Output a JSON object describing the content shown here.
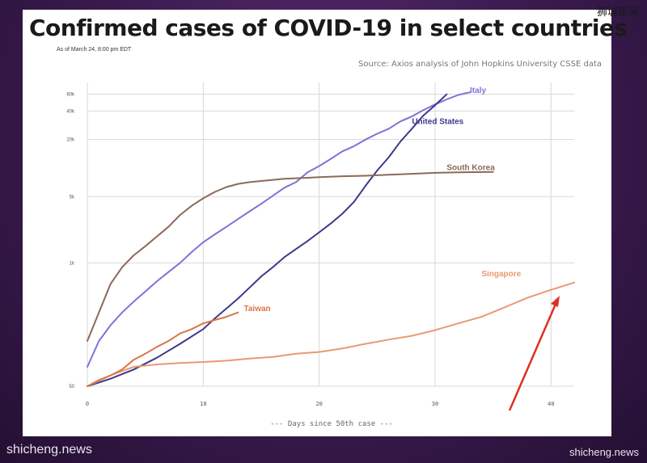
{
  "slide": {
    "title": "Confirmed cases of COVID-19 in select countries",
    "as_of": "As of March 24, 8:00 pm EDT",
    "source": "Source: Axios analysis of John Hopkins University CSSE data"
  },
  "watermarks": {
    "left": "shicheng.news",
    "right": "shicheng.news",
    "top": "狮城新闻"
  },
  "colors": {
    "Italy": "#7b74d8",
    "United States": "#3b3a8c",
    "South Korea": "#8a6a58",
    "Singapore": "#e89a72",
    "Taiwan": "#d9764a",
    "arrow": "#e03020",
    "grid": "#d8d8d8"
  },
  "chart_data": {
    "type": "line",
    "title": "Confirmed cases of COVID-19 in select countries",
    "xlabel": "Days since 50th case",
    "ylabel": "",
    "x_scale": "linear",
    "y_scale": "log",
    "xlim": [
      0,
      42
    ],
    "ylim": [
      50,
      80000
    ],
    "x_ticks": [
      0,
      10,
      20,
      30,
      40
    ],
    "x_tick_labels": [
      "0",
      "10",
      "20",
      "30",
      "40"
    ],
    "y_ticks": [
      50,
      1000,
      5000,
      20000,
      40000,
      60000
    ],
    "y_tick_labels": [
      "50",
      "1k",
      "5k",
      "20k",
      "40k",
      "60k"
    ],
    "grid": true,
    "legend": "inline labels at line ends",
    "series": [
      {
        "name": "Italy",
        "label_x": 33,
        "label_y": 62000,
        "x": [
          0,
          1,
          2,
          3,
          4,
          5,
          6,
          7,
          8,
          9,
          10,
          11,
          12,
          13,
          14,
          15,
          16,
          17,
          18,
          19,
          20,
          21,
          22,
          23,
          24,
          25,
          26,
          27,
          28,
          29,
          30,
          31,
          32,
          33
        ],
        "y": [
          80,
          150,
          220,
          300,
          390,
          500,
          640,
          800,
          1000,
          1300,
          1650,
          2000,
          2400,
          2900,
          3500,
          4200,
          5100,
          6200,
          7100,
          9000,
          10500,
          12500,
          15000,
          17000,
          20000,
          23000,
          26000,
          31000,
          35000,
          41000,
          47000,
          53000,
          59000,
          63000
        ]
      },
      {
        "name": "United States",
        "label_x": 28,
        "label_y": 29000,
        "x": [
          0,
          2,
          4,
          6,
          8,
          10,
          11,
          12,
          13,
          14,
          15,
          16,
          17,
          18,
          19,
          20,
          21,
          22,
          23,
          24,
          25,
          26,
          27,
          28,
          29,
          30,
          31
        ],
        "y": [
          50,
          60,
          75,
          100,
          140,
          200,
          260,
          330,
          420,
          550,
          720,
          900,
          1150,
          1400,
          1700,
          2100,
          2600,
          3300,
          4400,
          6500,
          9400,
          13000,
          19000,
          26000,
          36000,
          46000,
          60000
        ]
      },
      {
        "name": "South Korea",
        "label_x": 31,
        "label_y": 9500,
        "x": [
          0,
          1,
          2,
          3,
          4,
          5,
          6,
          7,
          8,
          9,
          10,
          11,
          12,
          13,
          14,
          15,
          16,
          17,
          18,
          19,
          20,
          22,
          24,
          26,
          28,
          30,
          32,
          35
        ],
        "y": [
          150,
          300,
          600,
          900,
          1200,
          1500,
          1900,
          2400,
          3200,
          4000,
          4800,
          5600,
          6300,
          6800,
          7100,
          7300,
          7500,
          7700,
          7800,
          7900,
          8000,
          8200,
          8300,
          8500,
          8700,
          8900,
          9000,
          9100
        ]
      },
      {
        "name": "Singapore",
        "label_x": 34,
        "label_y": 720,
        "x": [
          0,
          2,
          4,
          6,
          8,
          10,
          12,
          14,
          16,
          18,
          20,
          22,
          24,
          26,
          28,
          30,
          32,
          34,
          36,
          38,
          40,
          42
        ],
        "y": [
          50,
          65,
          80,
          85,
          88,
          90,
          93,
          98,
          102,
          110,
          115,
          125,
          140,
          155,
          170,
          195,
          230,
          270,
          340,
          430,
          520,
          620
        ]
      },
      {
        "name": "Taiwan",
        "label_x": 13.5,
        "label_y": 310,
        "x": [
          0,
          1,
          2,
          3,
          4,
          5,
          6,
          7,
          8,
          9,
          10,
          11,
          12,
          13
        ],
        "y": [
          50,
          58,
          65,
          75,
          95,
          110,
          130,
          150,
          180,
          200,
          230,
          250,
          270,
          300
        ]
      }
    ]
  }
}
